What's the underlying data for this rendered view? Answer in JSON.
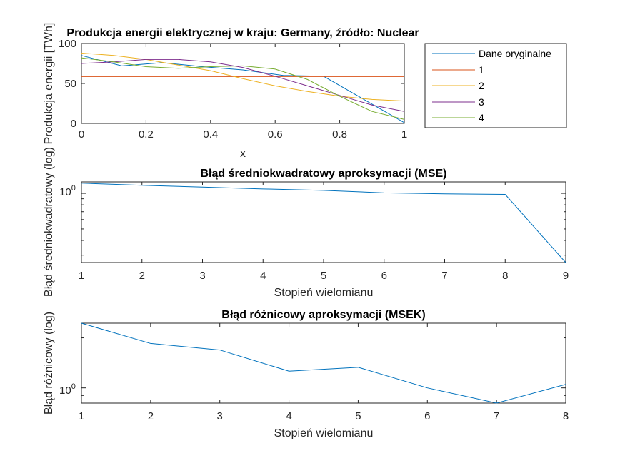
{
  "colors": {
    "blue": "#0072BD",
    "red": "#D95319",
    "yellow": "#EDB120",
    "purple": "#7E2F8E",
    "green": "#77AC30"
  },
  "chart_data": [
    {
      "type": "line",
      "title": "Produkcja energii elektrycznej w kraju: Germany, źródło: Nuclear",
      "xlabel": "x",
      "ylabel": "Produkcja energii [TWh]",
      "xlim": [
        0,
        1
      ],
      "ylim": [
        0,
        100
      ],
      "xticks": [
        "0",
        "0.2",
        "0.4",
        "0.6",
        "0.8",
        "1"
      ],
      "yticks": [
        "0",
        "50",
        "100"
      ],
      "legend_position": "outside-right",
      "series": [
        {
          "name": "Dane oryginalne",
          "color": "blue",
          "x": [
            0,
            0.125,
            0.25,
            0.375,
            0.5,
            0.625,
            0.75,
            0.875,
            1
          ],
          "y": [
            85,
            72,
            76,
            71,
            67,
            60,
            59,
            30,
            1
          ]
        },
        {
          "name": "1",
          "color": "red",
          "x": [
            0,
            0.25,
            0.5,
            0.75,
            1
          ],
          "y": [
            58.6,
            58.6,
            58.6,
            58.6,
            58.6
          ]
        },
        {
          "name": "2",
          "color": "yellow",
          "x": [
            0,
            0.1,
            0.2,
            0.3,
            0.4,
            0.5,
            0.6,
            0.7,
            0.8,
            0.9,
            1
          ],
          "y": [
            88,
            85,
            80,
            73,
            66,
            56,
            47,
            40,
            34,
            30,
            28
          ]
        },
        {
          "name": "3",
          "color": "purple",
          "x": [
            0,
            0.1,
            0.2,
            0.3,
            0.4,
            0.5,
            0.6,
            0.7,
            0.8,
            0.9,
            1
          ],
          "y": [
            75,
            77,
            80,
            80,
            77,
            70,
            59,
            47,
            35,
            23,
            15
          ]
        },
        {
          "name": "4",
          "color": "green",
          "x": [
            0,
            0.1,
            0.2,
            0.3,
            0.4,
            0.5,
            0.6,
            0.7,
            0.8,
            0.9,
            1
          ],
          "y": [
            82,
            77,
            71,
            69,
            71,
            72,
            68,
            55,
            34,
            15,
            5
          ]
        }
      ]
    },
    {
      "type": "line",
      "title": "Błąd średniokwadratowy aproksymacji (MSE)",
      "xlabel": "Stopień wielomianu",
      "ylabel": "Błąd średniokwadratowy (log)",
      "yscale": "log",
      "xlim": [
        1,
        9
      ],
      "xticks": [
        "1",
        "2",
        "3",
        "4",
        "5",
        "6",
        "7",
        "8",
        "9"
      ],
      "yticks": [
        "10",
        "0"
      ],
      "series": [
        {
          "color": "blue",
          "x": [
            1,
            2,
            3,
            4,
            5,
            6,
            7,
            8,
            9
          ],
          "y": [
            1.22,
            1.17,
            1.13,
            1.09,
            1.06,
            1.01,
            0.99,
            0.98,
            0.26
          ]
        }
      ]
    },
    {
      "type": "line",
      "title": "Błąd różnicowy aproksymacji (MSEK)",
      "xlabel": "Stopień wielomianu",
      "ylabel": "Błąd różnicowy (log)",
      "yscale": "log",
      "xlim": [
        1,
        8
      ],
      "xticks": [
        "1",
        "2",
        "3",
        "4",
        "5",
        "6",
        "7",
        "8"
      ],
      "yticks": [
        "10",
        "0"
      ],
      "series": [
        {
          "color": "blue",
          "x": [
            1,
            2,
            3,
            4,
            5,
            6,
            7,
            8
          ],
          "y": [
            2.45,
            1.85,
            1.69,
            1.26,
            1.33,
            1.0,
            0.81,
            1.05
          ]
        }
      ]
    }
  ]
}
